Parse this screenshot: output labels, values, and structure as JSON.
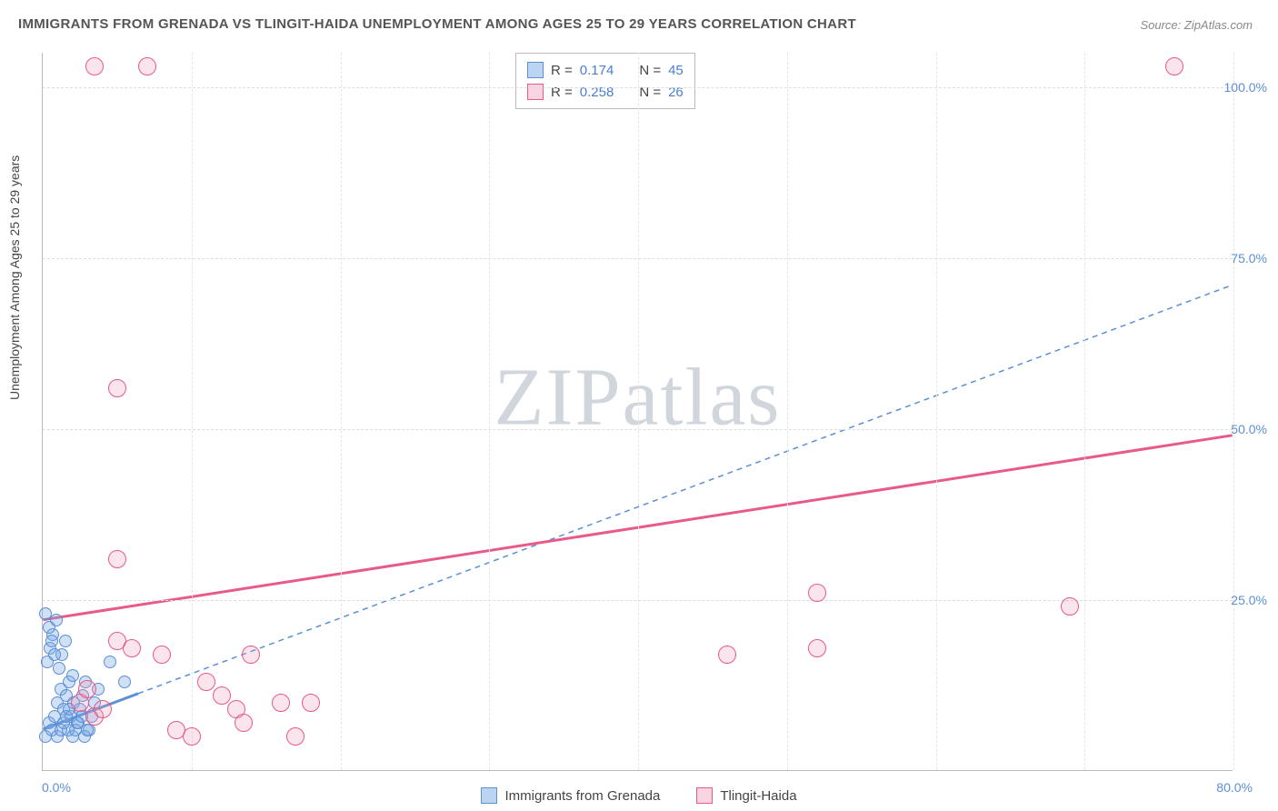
{
  "title": "IMMIGRANTS FROM GRENADA VS TLINGIT-HAIDA UNEMPLOYMENT AMONG AGES 25 TO 29 YEARS CORRELATION CHART",
  "source": "Source: ZipAtlas.com",
  "ylabel": "Unemployment Among Ages 25 to 29 years",
  "watermark_a": "ZIP",
  "watermark_b": "atlas",
  "chart": {
    "type": "scatter",
    "xlim": [
      0,
      80
    ],
    "ylim": [
      0,
      105
    ],
    "x_ticks": [
      {
        "pos": 0,
        "label": "0.0%"
      },
      {
        "pos": 80,
        "label": "80.0%"
      }
    ],
    "y_ticks": [
      {
        "pos": 25,
        "label": "25.0%"
      },
      {
        "pos": 50,
        "label": "50.0%"
      },
      {
        "pos": 75,
        "label": "75.0%"
      },
      {
        "pos": 100,
        "label": "100.0%"
      }
    ],
    "x_gridlines": [
      10,
      20,
      30,
      40,
      50,
      60,
      70,
      80
    ],
    "y_gridlines": [
      25,
      50,
      75,
      100
    ],
    "background_color": "#ffffff",
    "grid_color": "#dddddd",
    "marker_radius_blue": 7,
    "marker_radius_pink": 10,
    "series": [
      {
        "name": "Immigrants from Grenada",
        "color_fill": "rgba(120,170,230,0.35)",
        "color_stroke": "#5b8fd6",
        "legend_square": "sq-blue",
        "css": "pt-blue",
        "R": "0.174",
        "N": "45",
        "trend": {
          "x1": 0,
          "y1": 6,
          "x2": 80,
          "y2": 71,
          "extent_fraction": 0.08,
          "dash": "6 5",
          "stroke": "#5b8fd6",
          "width": 1.5
        },
        "points": [
          {
            "x": 0.2,
            "y": 5
          },
          {
            "x": 0.4,
            "y": 7
          },
          {
            "x": 0.6,
            "y": 6
          },
          {
            "x": 0.8,
            "y": 8
          },
          {
            "x": 1.0,
            "y": 10
          },
          {
            "x": 1.2,
            "y": 12
          },
          {
            "x": 1.4,
            "y": 9
          },
          {
            "x": 1.6,
            "y": 11
          },
          {
            "x": 1.8,
            "y": 13
          },
          {
            "x": 2.0,
            "y": 14
          },
          {
            "x": 0.3,
            "y": 16
          },
          {
            "x": 0.5,
            "y": 18
          },
          {
            "x": 0.7,
            "y": 20
          },
          {
            "x": 0.9,
            "y": 22
          },
          {
            "x": 1.1,
            "y": 15
          },
          {
            "x": 1.3,
            "y": 17
          },
          {
            "x": 1.5,
            "y": 19
          },
          {
            "x": 1.7,
            "y": 6
          },
          {
            "x": 1.9,
            "y": 8
          },
          {
            "x": 2.1,
            "y": 10
          },
          {
            "x": 2.3,
            "y": 7
          },
          {
            "x": 2.5,
            "y": 9
          },
          {
            "x": 2.7,
            "y": 11
          },
          {
            "x": 2.9,
            "y": 13
          },
          {
            "x": 3.1,
            "y": 6
          },
          {
            "x": 3.3,
            "y": 8
          },
          {
            "x": 3.5,
            "y": 10
          },
          {
            "x": 3.7,
            "y": 12
          },
          {
            "x": 0.2,
            "y": 23
          },
          {
            "x": 0.4,
            "y": 21
          },
          {
            "x": 0.6,
            "y": 19
          },
          {
            "x": 0.8,
            "y": 17
          },
          {
            "x": 1.0,
            "y": 5
          },
          {
            "x": 1.2,
            "y": 6
          },
          {
            "x": 1.4,
            "y": 7
          },
          {
            "x": 1.6,
            "y": 8
          },
          {
            "x": 1.8,
            "y": 9
          },
          {
            "x": 2.0,
            "y": 5
          },
          {
            "x": 2.2,
            "y": 6
          },
          {
            "x": 2.4,
            "y": 7
          },
          {
            "x": 2.6,
            "y": 8
          },
          {
            "x": 2.8,
            "y": 5
          },
          {
            "x": 3.0,
            "y": 6
          },
          {
            "x": 4.5,
            "y": 16
          },
          {
            "x": 5.5,
            "y": 13
          }
        ]
      },
      {
        "name": "Tlingit-Haida",
        "color_fill": "rgba(240,150,180,0.25)",
        "color_stroke": "#e85a8a",
        "legend_square": "sq-pink",
        "css": "pt-pink",
        "R": "0.258",
        "N": "26",
        "trend": {
          "x1": 0,
          "y1": 22,
          "x2": 80,
          "y2": 49,
          "extent_fraction": 1.0,
          "dash": "",
          "stroke": "#e85a8a",
          "width": 3
        },
        "points": [
          {
            "x": 3.5,
            "y": 103
          },
          {
            "x": 7.0,
            "y": 103
          },
          {
            "x": 76,
            "y": 103
          },
          {
            "x": 5.0,
            "y": 56
          },
          {
            "x": 5.0,
            "y": 31
          },
          {
            "x": 46,
            "y": 17
          },
          {
            "x": 52,
            "y": 18
          },
          {
            "x": 69,
            "y": 24
          },
          {
            "x": 52,
            "y": 26
          },
          {
            "x": 2.5,
            "y": 10
          },
          {
            "x": 3.0,
            "y": 12
          },
          {
            "x": 3.5,
            "y": 8
          },
          {
            "x": 4.0,
            "y": 9
          },
          {
            "x": 5.0,
            "y": 19
          },
          {
            "x": 6.0,
            "y": 18
          },
          {
            "x": 8.0,
            "y": 17
          },
          {
            "x": 9.0,
            "y": 6
          },
          {
            "x": 10.0,
            "y": 5
          },
          {
            "x": 11.0,
            "y": 13
          },
          {
            "x": 12.0,
            "y": 11
          },
          {
            "x": 13.0,
            "y": 9
          },
          {
            "x": 13.5,
            "y": 7
          },
          {
            "x": 14.0,
            "y": 17
          },
          {
            "x": 16.0,
            "y": 10
          },
          {
            "x": 17.0,
            "y": 5
          },
          {
            "x": 18.0,
            "y": 10
          }
        ]
      }
    ],
    "stat_box": {
      "rows": [
        {
          "swatch": "sq-blue",
          "r_label": "R =",
          "r_val": "0.174",
          "n_label": "N =",
          "n_val": "45"
        },
        {
          "swatch": "sq-pink",
          "r_label": "R =",
          "r_val": "0.258",
          "n_label": "N =",
          "n_val": "26"
        }
      ]
    },
    "bottom_legend": [
      {
        "swatch": "sq-blue",
        "label": "Immigrants from Grenada"
      },
      {
        "swatch": "sq-pink",
        "label": "Tlingit-Haida"
      }
    ]
  }
}
